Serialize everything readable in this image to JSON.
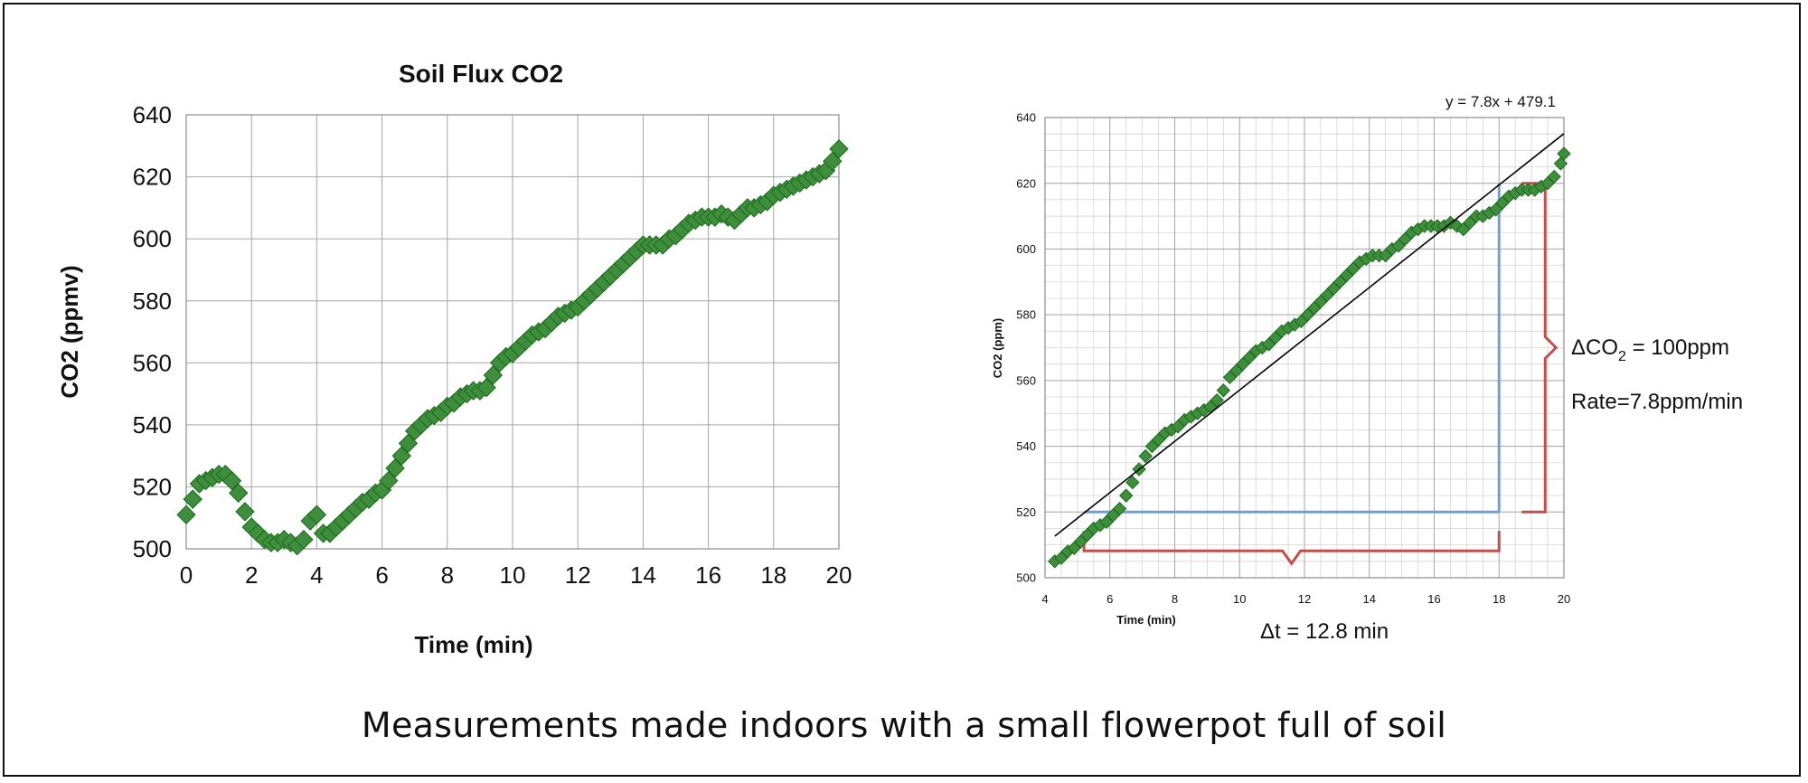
{
  "caption": "Measurements made indoors with a small flowerpot full of soil",
  "colors": {
    "marker_fill": "#3e8e3e",
    "marker_stroke": "#1a6a1a",
    "grid": "#bfbfbf",
    "trendline": "#000000",
    "bracket": "#c0504d",
    "guide": "#6fa0d4"
  },
  "chart_data": [
    {
      "type": "scatter",
      "title": "Soil Flux CO2",
      "xlabel": "Time (min)",
      "ylabel": "CO2 (ppmv)",
      "xlim": [
        0,
        20
      ],
      "ylim": [
        500,
        640
      ],
      "x_ticks": [
        "0",
        "2",
        "4",
        "6",
        "8",
        "10",
        "12",
        "14",
        "16",
        "18",
        "20"
      ],
      "y_ticks": [
        "500",
        "520",
        "540",
        "560",
        "580",
        "600",
        "620",
        "640"
      ],
      "grid": true,
      "marker": "diamond",
      "series": [
        {
          "x": [
            0.0,
            0.2,
            0.4,
            0.6,
            0.8,
            1.0,
            1.2,
            1.4,
            1.6,
            1.8,
            2.0,
            2.2,
            2.4,
            2.6,
            2.8,
            3.0,
            3.2,
            3.4,
            3.6,
            3.8,
            4.0,
            4.2,
            4.4,
            4.6,
            4.8,
            5.0,
            5.2,
            5.4,
            5.6,
            5.8,
            6.0,
            6.2,
            6.4,
            6.6,
            6.8,
            7.0,
            7.2,
            7.4,
            7.6,
            7.8,
            8.0,
            8.2,
            8.4,
            8.6,
            8.8,
            9.0,
            9.2,
            9.4,
            9.6,
            9.8,
            10.0,
            10.2,
            10.4,
            10.6,
            10.8,
            11.0,
            11.2,
            11.4,
            11.6,
            11.8,
            12.0,
            12.2,
            12.4,
            12.6,
            12.8,
            13.0,
            13.2,
            13.4,
            13.6,
            13.8,
            14.0,
            14.2,
            14.4,
            14.6,
            14.8,
            15.0,
            15.2,
            15.4,
            15.6,
            15.8,
            16.0,
            16.2,
            16.4,
            16.6,
            16.8,
            17.0,
            17.2,
            17.4,
            17.6,
            17.8,
            18.0,
            18.2,
            18.4,
            18.6,
            18.8,
            19.0,
            19.2,
            19.4,
            19.6,
            19.8,
            20.0
          ],
          "y": [
            511,
            516,
            521,
            522,
            523,
            524,
            524,
            522,
            518,
            512,
            507,
            505,
            503,
            502,
            502,
            503,
            502,
            501,
            503,
            509,
            511,
            505,
            505,
            507,
            509,
            511,
            513,
            515,
            516,
            518,
            519,
            522,
            526,
            530,
            534,
            538,
            540,
            542,
            543,
            544,
            546,
            547,
            549,
            550,
            551,
            551,
            552,
            556,
            560,
            562,
            563,
            565,
            567,
            569,
            570,
            571,
            573,
            575,
            576,
            577,
            578,
            580,
            582,
            584,
            586,
            588,
            590,
            592,
            594,
            596,
            598,
            598,
            598,
            598,
            600,
            601,
            603,
            605,
            606,
            607,
            607,
            607,
            608,
            607,
            606,
            608,
            610,
            610,
            611,
            612,
            614,
            615,
            616,
            617,
            618,
            619,
            620,
            621,
            622,
            625,
            629
          ]
        }
      ]
    },
    {
      "type": "scatter",
      "title": "",
      "xlabel": "Time (min)",
      "ylabel": "CO2 (ppm)",
      "xlim": [
        4,
        20
      ],
      "ylim": [
        500,
        640
      ],
      "x_ticks": [
        "4",
        "6",
        "8",
        "10",
        "12",
        "14",
        "16",
        "18",
        "20"
      ],
      "y_ticks": [
        "500",
        "520",
        "540",
        "560",
        "580",
        "600",
        "620",
        "640"
      ],
      "grid": true,
      "minor_grid": true,
      "marker": "diamond",
      "trendline": {
        "equation": "y = 7.8x + 479.1",
        "slope": 7.8,
        "intercept": 479.1,
        "x_range": [
          4.3,
          20
        ]
      },
      "guides": {
        "x_start": 5.2,
        "x_end": 18.0,
        "y_start": 520,
        "y_end": 620
      },
      "annotations": {
        "delta_co2_prefix": "ΔCO",
        "delta_co2_sub": "2",
        "delta_co2_suffix": " = 100ppm",
        "rate": "Rate=7.8ppm/min",
        "delta_t": "Δt = 12.8 min"
      },
      "series": [
        {
          "x": [
            4.3,
            4.5,
            4.7,
            4.9,
            5.1,
            5.3,
            5.5,
            5.7,
            5.9,
            6.1,
            6.3,
            6.5,
            6.7,
            6.9,
            7.1,
            7.3,
            7.5,
            7.7,
            7.9,
            8.1,
            8.3,
            8.5,
            8.7,
            8.9,
            9.1,
            9.3,
            9.5,
            9.7,
            9.9,
            10.1,
            10.3,
            10.5,
            10.7,
            10.9,
            11.1,
            11.3,
            11.5,
            11.7,
            11.9,
            12.1,
            12.3,
            12.5,
            12.7,
            12.9,
            13.1,
            13.3,
            13.5,
            13.7,
            13.9,
            14.1,
            14.3,
            14.5,
            14.7,
            14.9,
            15.1,
            15.3,
            15.5,
            15.7,
            15.9,
            16.1,
            16.3,
            16.5,
            16.7,
            16.9,
            17.1,
            17.3,
            17.5,
            17.7,
            17.9,
            18.1,
            18.3,
            18.5,
            18.7,
            18.9,
            19.1,
            19.3,
            19.5,
            19.7,
            19.9,
            20.0
          ],
          "y": [
            505,
            506,
            508,
            509,
            511,
            513,
            515,
            516,
            517,
            519,
            521,
            525,
            529,
            533,
            537,
            540,
            542,
            544,
            545,
            546,
            548,
            549,
            550,
            551,
            552,
            554,
            557,
            561,
            563,
            565,
            567,
            569,
            570,
            571,
            573,
            575,
            576,
            577,
            578,
            580,
            582,
            584,
            586,
            588,
            590,
            592,
            594,
            596,
            597,
            598,
            598,
            598,
            600,
            601,
            603,
            605,
            606,
            607,
            607,
            607,
            607,
            608,
            607,
            606,
            608,
            610,
            610,
            611,
            612,
            614,
            616,
            617,
            618,
            618,
            618,
            619,
            620,
            622,
            626,
            629
          ]
        }
      ]
    }
  ]
}
